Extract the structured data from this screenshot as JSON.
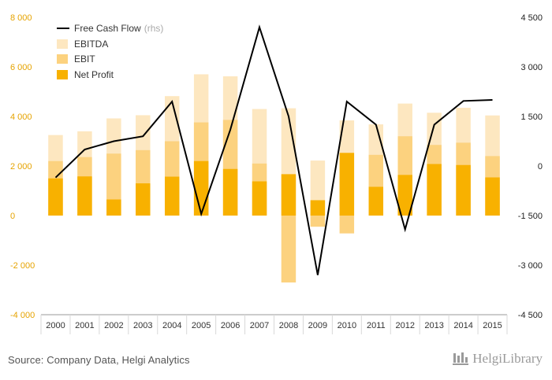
{
  "chart_data": {
    "type": "bar",
    "categories": [
      "2000",
      "2001",
      "2002",
      "2003",
      "2004",
      "2005",
      "2006",
      "2007",
      "2008",
      "2009",
      "2010",
      "2011",
      "2012",
      "2013",
      "2014",
      "2015"
    ],
    "series": [
      {
        "name": "EBITDA",
        "axis": "left",
        "values": [
          3250,
          3400,
          3920,
          4050,
          4820,
          5700,
          5620,
          4300,
          4330,
          2220,
          3840,
          3680,
          4520,
          4150,
          4350,
          4040
        ]
      },
      {
        "name": "EBIT",
        "axis": "left",
        "values": [
          2200,
          2360,
          2500,
          2640,
          3000,
          3760,
          3860,
          2100,
          -2700,
          -450,
          -720,
          2450,
          3200,
          2850,
          2940,
          2400
        ]
      },
      {
        "name": "Net Profit",
        "axis": "left",
        "values": [
          1500,
          1580,
          650,
          1300,
          1570,
          2200,
          1880,
          1380,
          1670,
          620,
          2530,
          1160,
          1640,
          2080,
          2040,
          1540
        ]
      },
      {
        "name": "Free Cash Flow",
        "legend_suffix": "(rhs)",
        "axis": "right",
        "type": "line",
        "values": [
          -350,
          500,
          750,
          900,
          1950,
          -1450,
          1100,
          4200,
          1500,
          -3300,
          1950,
          1250,
          -1920,
          1250,
          1970,
          2000
        ]
      }
    ],
    "yaxis_left": {
      "ylim": [
        -4000,
        8000
      ],
      "ticks": [
        8000,
        6000,
        4000,
        2000,
        0,
        -2000,
        -4000
      ],
      "tick_labels": [
        "8 000",
        "6 000",
        "4 000",
        "2 000",
        "0",
        "-2 000",
        "-4 000"
      ]
    },
    "yaxis_right": {
      "ylim": [
        -4500,
        4500
      ],
      "ticks": [
        4500,
        3000,
        1500,
        0,
        -1500,
        -3000,
        -4500
      ],
      "tick_labels": [
        "4 500",
        "3 000",
        "1 500",
        "0",
        "-1 500",
        "-3 000",
        "-4 500"
      ]
    },
    "legend_position": "top-left",
    "grid": false,
    "colors": {
      "EBITDA": "#fde7c0",
      "EBIT": "#fcd27f",
      "Net Profit": "#f8b100",
      "Free Cash Flow": "#000000",
      "left_tick_text": "#e6a300",
      "right_tick_text": "#222222",
      "axis_line": "#999999"
    }
  },
  "footer": {
    "source": "Source: Company Data, Helgi Analytics",
    "brand": "HelgiLibrary"
  }
}
